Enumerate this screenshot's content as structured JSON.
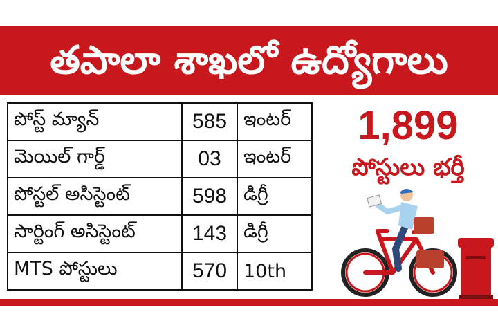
{
  "header": {
    "title": "తపాలా శాఖలో ఉద్యోగాలు"
  },
  "posts": [
    {
      "name": "పోస్ట్ మ్యాన్",
      "count": "585",
      "qualification": "ఇంటర్"
    },
    {
      "name": "మెయిల్ గార్డ్",
      "count": "03",
      "qualification": "ఇంటర్"
    },
    {
      "name": "పోస్టల్ అసిస్టెంట్",
      "count": "598",
      "qualification": "డిగ్రీ"
    },
    {
      "name": "సార్టింగ్ అసిస్టెంట్",
      "count": "143",
      "qualification": "డిగ్రీ"
    },
    {
      "name": "MTS పోస్టులు",
      "count": "570",
      "qualification": "10th"
    }
  ],
  "summary": {
    "total": "1,899",
    "subtitle": "పోస్టులు భర్తీ"
  },
  "illustration": {
    "icon": "postman-on-bicycle-icon",
    "postbox_icon": "post-box-icon"
  },
  "colors": {
    "brand_red": "#c8181e",
    "shirt_blue": "#a9d2ee",
    "bag_red": "#b8402c"
  }
}
